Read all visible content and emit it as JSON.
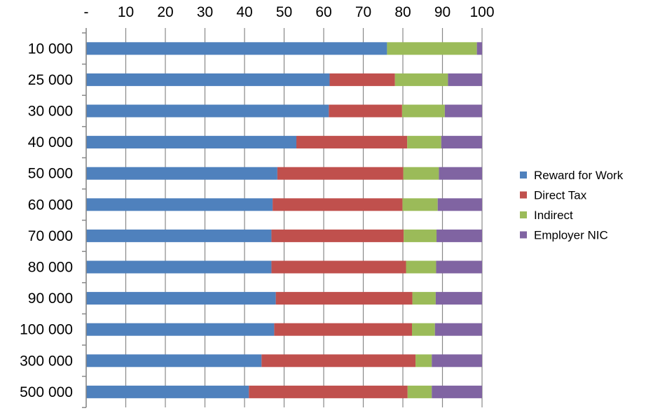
{
  "chart_data": {
    "type": "bar",
    "orientation": "horizontal",
    "stacked": true,
    "title": "",
    "xlabel": "",
    "ylabel": "",
    "xlim": [
      0,
      100
    ],
    "x_tick_labels": [
      "-",
      "10",
      "20",
      "30",
      "40",
      "50",
      "60",
      "70",
      "80",
      "90",
      "100"
    ],
    "x_axis_position": "top",
    "legend_position": "right",
    "categories": [
      "10 000",
      "25 000",
      "30 000",
      "40 000",
      "50 000",
      "60 000",
      "70 000",
      "80 000",
      "90 000",
      "100 000",
      "300 000",
      "500 000"
    ],
    "series": [
      {
        "name": "Reward for Work",
        "color": "#4F81BD",
        "values": [
          76,
          61.5,
          61.3,
          53.1,
          48.3,
          47.1,
          46.8,
          46.8,
          47.9,
          47.5,
          44.3,
          41.1
        ]
      },
      {
        "name": "Direct Tax",
        "color": "#C0504D",
        "values": [
          0,
          16.5,
          18.5,
          28,
          31.8,
          32.8,
          33.4,
          34.0,
          34.5,
          34.8,
          38.9,
          40.1
        ]
      },
      {
        "name": "Indirect",
        "color": "#9BBB59",
        "values": [
          22.7,
          13.4,
          10.8,
          8.6,
          9.0,
          8.9,
          8.3,
          7.6,
          5.9,
          5.8,
          4.1,
          6.1
        ]
      },
      {
        "name": "Employer NIC",
        "color": "#8064A2",
        "values": [
          1.3,
          8.6,
          9.4,
          10.3,
          10.9,
          11.2,
          11.5,
          11.6,
          11.7,
          11.9,
          12.7,
          12.7
        ]
      }
    ]
  }
}
